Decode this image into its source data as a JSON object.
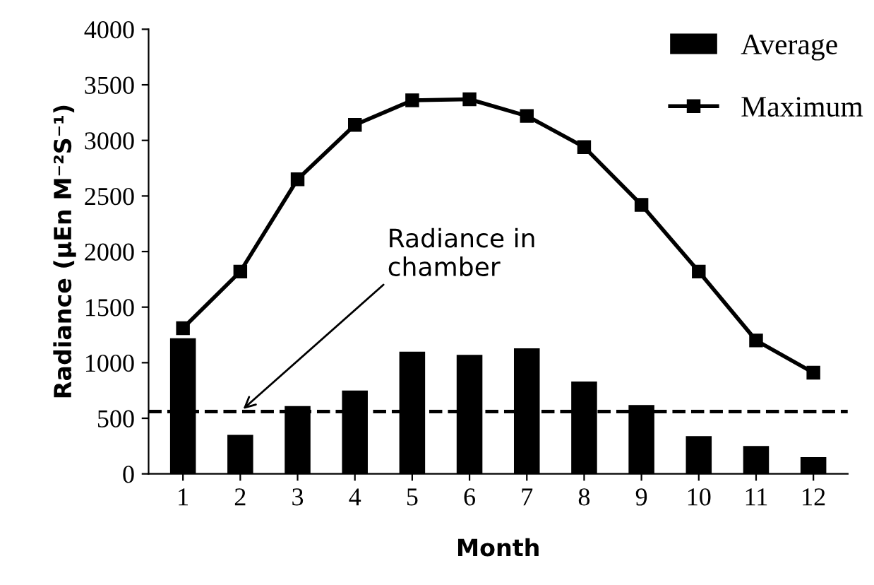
{
  "chart_data": {
    "type": "bar",
    "xlabel": "Month",
    "ylabel": "Radiance (µEn M⁻²S⁻¹)",
    "categories": [
      "1",
      "2",
      "3",
      "4",
      "5",
      "6",
      "7",
      "8",
      "9",
      "10",
      "11",
      "12"
    ],
    "series": [
      {
        "name": "Average",
        "color": "#000000",
        "values": [
          1220,
          350,
          610,
          750,
          1100,
          1070,
          1130,
          830,
          620,
          340,
          250,
          150
        ]
      },
      {
        "name": "Maximum",
        "type": "line",
        "color": "#000000",
        "marker": "square",
        "values": [
          1310,
          1820,
          2650,
          3140,
          3360,
          3370,
          3220,
          2940,
          2420,
          1820,
          1200,
          910
        ]
      }
    ],
    "ylim": [
      0,
      4000
    ],
    "yticks": [
      0,
      500,
      1000,
      1500,
      2000,
      2500,
      3000,
      3500,
      4000
    ],
    "ref_lines": [
      {
        "axis": "y",
        "value": 560,
        "line_style": "dashed",
        "color": "#000000"
      }
    ],
    "annotations": [
      {
        "text": "Radiance in\nchamber",
        "x": "2",
        "y": 560
      }
    ],
    "legend": "top right",
    "grid": false
  }
}
